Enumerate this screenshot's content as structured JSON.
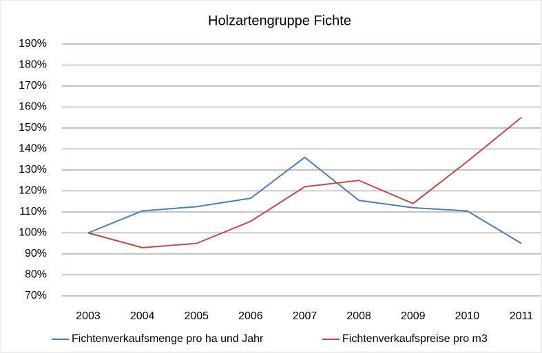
{
  "chart_data": {
    "type": "line",
    "title": "Holzartengruppe Fichte",
    "categories": [
      "2003",
      "2004",
      "2005",
      "2006",
      "2007",
      "2008",
      "2009",
      "2010",
      "2011"
    ],
    "series": [
      {
        "name": "Fichtenverkaufsmenge pro ha und Jahr",
        "color": "#4a7ebb",
        "values": [
          100,
          110.5,
          112.5,
          116.5,
          136,
          115.5,
          112,
          110.5,
          95
        ]
      },
      {
        "name": "Fichtenverkaufspreise pro m3",
        "color": "#be4b48",
        "values": [
          100,
          93,
          95,
          105.5,
          122,
          125,
          114,
          134,
          155
        ]
      }
    ],
    "ylim": [
      70,
      190
    ],
    "yticks": [
      {
        "value": 70,
        "label": "70%"
      },
      {
        "value": 80,
        "label": "80%"
      },
      {
        "value": 90,
        "label": "90%"
      },
      {
        "value": 100,
        "label": "100%"
      },
      {
        "value": 110,
        "label": "110%"
      },
      {
        "value": 120,
        "label": "120%"
      },
      {
        "value": 130,
        "label": "130%"
      },
      {
        "value": 140,
        "label": "140%"
      },
      {
        "value": 150,
        "label": "150%"
      },
      {
        "value": 160,
        "label": "160%"
      },
      {
        "value": 170,
        "label": "170%"
      },
      {
        "value": 180,
        "label": "180%"
      },
      {
        "value": 190,
        "label": "190%"
      }
    ],
    "grid": true,
    "legend": "bottom"
  }
}
